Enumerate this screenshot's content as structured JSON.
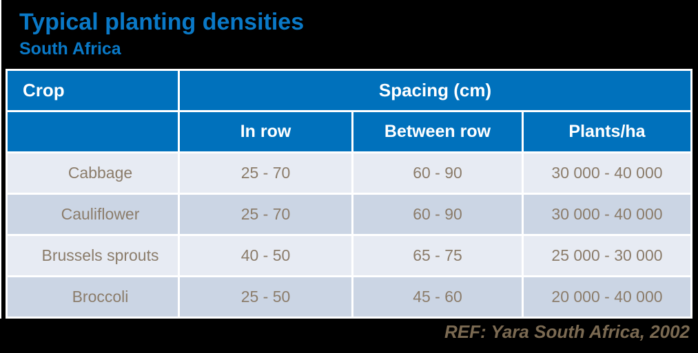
{
  "title": "Typical planting densities",
  "subtitle": "South Africa",
  "table": {
    "header": {
      "crop": "Crop",
      "spacing_group": "Spacing (cm)",
      "in_row": "In row",
      "between_row": "Between row",
      "plants_ha": "Plants/ha"
    },
    "rows": [
      {
        "crop": "Cabbage",
        "in_row": "25 - 70",
        "between_row": "60 - 90",
        "plants_ha": "30 000 - 40 000"
      },
      {
        "crop": "Cauliflower",
        "in_row": "25 - 70",
        "between_row": "60 - 90",
        "plants_ha": "30 000 - 40 000"
      },
      {
        "crop": "Brussels sprouts",
        "in_row": "40 - 50",
        "between_row": "65 - 75",
        "plants_ha": "25 000 - 30 000"
      },
      {
        "crop": "Broccoli",
        "in_row": "25 - 50",
        "between_row": "45 - 60",
        "plants_ha": "20 000 - 40 000"
      }
    ]
  },
  "footer": {
    "reference": "REF: Yara South Africa, 2002"
  },
  "colors": {
    "background": "#000000",
    "title_blue": "#0a79c7",
    "header_blue": "#0071bc",
    "row_light": "#e7ebf3",
    "row_dark": "#cbd5e4",
    "row_text": "#8b7c6a",
    "footer_text": "#7b6a52",
    "gridline": "#ffffff"
  }
}
